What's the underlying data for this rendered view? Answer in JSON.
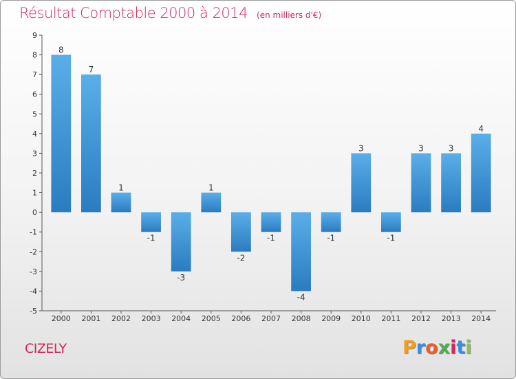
{
  "title": "Résultat Comptable 2000 à 2014",
  "subtitle": "(en milliers d'€)",
  "city": "CIZELY",
  "logo": {
    "letters": [
      "P",
      "r",
      "o",
      "x",
      "i",
      "t",
      "i"
    ],
    "colors": [
      "#f0a020",
      "#3a8de0",
      "#e8602c",
      "#4caf50",
      "#d6265a",
      "#3a8de0",
      "#8bc34a"
    ]
  },
  "colors": {
    "bar_top": "#5aaee8",
    "bar_bottom": "#2a7cc0",
    "accent": "#d6265a"
  },
  "chart_data": {
    "type": "bar",
    "title": "Résultat Comptable 2000 à 2014",
    "subtitle": "(en milliers d'€)",
    "categories": [
      "2000",
      "2001",
      "2002",
      "2003",
      "2004",
      "2005",
      "2006",
      "2007",
      "2008",
      "2009",
      "2010",
      "2011",
      "2012",
      "2013",
      "2014"
    ],
    "values": [
      8,
      7,
      1,
      -1,
      -3,
      1,
      -2,
      -1,
      -4,
      -1,
      3,
      -1,
      3,
      3,
      4
    ],
    "ylim": [
      -5,
      9
    ],
    "yticks": [
      -5,
      -4,
      -3,
      -2,
      -1,
      0,
      1,
      2,
      3,
      4,
      5,
      6,
      7,
      8,
      9
    ],
    "grid": false,
    "legend": "none"
  }
}
